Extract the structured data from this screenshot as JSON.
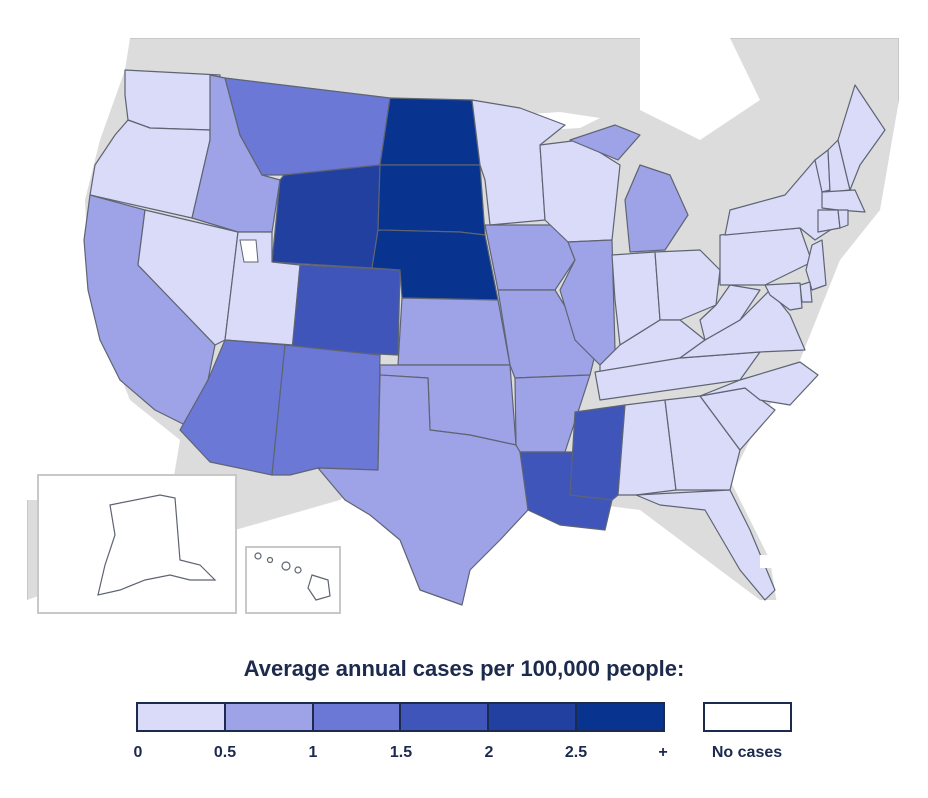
{
  "legend": {
    "title": "Average annual cases per 100,000 people:",
    "ticks": [
      "0",
      "0.5",
      "1",
      "1.5",
      "2",
      "2.5",
      "+"
    ],
    "no_cases_label": "No cases",
    "bins": [
      {
        "range": "0–0.5",
        "color": "#d9dbf8"
      },
      {
        "range": "0.5–1",
        "color": "#9da3e6"
      },
      {
        "range": "1–1.5",
        "color": "#6b78d6"
      },
      {
        "range": "1.5–2",
        "color": "#3f55b9"
      },
      {
        "range": "2–2.5",
        "color": "#2140a0"
      },
      {
        "range": "2.5+",
        "color": "#08338f"
      }
    ],
    "no_cases_color": "#ffffff"
  },
  "colors": {
    "background_land": "#dcdcdc",
    "water": "#ffffff",
    "state_border": "#5e6472"
  },
  "states": [
    {
      "name": "Washington",
      "bin": 0
    },
    {
      "name": "Oregon",
      "bin": 0
    },
    {
      "name": "California",
      "bin": 1
    },
    {
      "name": "Nevada",
      "bin": 0
    },
    {
      "name": "Idaho",
      "bin": 1
    },
    {
      "name": "Montana",
      "bin": 2
    },
    {
      "name": "Wyoming",
      "bin": 4
    },
    {
      "name": "Utah",
      "bin": 0
    },
    {
      "name": "Arizona",
      "bin": 2
    },
    {
      "name": "Colorado",
      "bin": 3
    },
    {
      "name": "New Mexico",
      "bin": 2
    },
    {
      "name": "North Dakota",
      "bin": 5
    },
    {
      "name": "South Dakota",
      "bin": 5
    },
    {
      "name": "Nebraska",
      "bin": 5
    },
    {
      "name": "Kansas",
      "bin": 1
    },
    {
      "name": "Oklahoma",
      "bin": 1
    },
    {
      "name": "Texas",
      "bin": 1
    },
    {
      "name": "Minnesota",
      "bin": 0
    },
    {
      "name": "Iowa",
      "bin": 1
    },
    {
      "name": "Missouri",
      "bin": 1
    },
    {
      "name": "Arkansas",
      "bin": 1
    },
    {
      "name": "Louisiana",
      "bin": 3
    },
    {
      "name": "Wisconsin",
      "bin": 0
    },
    {
      "name": "Illinois",
      "bin": 1
    },
    {
      "name": "Michigan",
      "bin": 1
    },
    {
      "name": "Indiana",
      "bin": 0
    },
    {
      "name": "Ohio",
      "bin": 0
    },
    {
      "name": "Kentucky",
      "bin": 0
    },
    {
      "name": "Tennessee",
      "bin": 0
    },
    {
      "name": "Mississippi",
      "bin": 3
    },
    {
      "name": "Alabama",
      "bin": 0
    },
    {
      "name": "Georgia",
      "bin": 0
    },
    {
      "name": "Florida",
      "bin": 0
    },
    {
      "name": "South Carolina",
      "bin": 0
    },
    {
      "name": "North Carolina",
      "bin": 0
    },
    {
      "name": "Virginia",
      "bin": 0
    },
    {
      "name": "West Virginia",
      "bin": 0
    },
    {
      "name": "Pennsylvania",
      "bin": 0
    },
    {
      "name": "New York",
      "bin": 0
    },
    {
      "name": "Vermont",
      "bin": 0
    },
    {
      "name": "New Hampshire",
      "bin": 0
    },
    {
      "name": "Maine",
      "bin": 0
    },
    {
      "name": "Massachusetts",
      "bin": 0
    },
    {
      "name": "Connecticut",
      "bin": 0
    },
    {
      "name": "Rhode Island",
      "bin": 0
    },
    {
      "name": "New Jersey",
      "bin": 0
    },
    {
      "name": "Delaware",
      "bin": 0
    },
    {
      "name": "Maryland",
      "bin": 0
    },
    {
      "name": "Alaska",
      "bin": "none"
    },
    {
      "name": "Hawaii",
      "bin": "none"
    }
  ]
}
